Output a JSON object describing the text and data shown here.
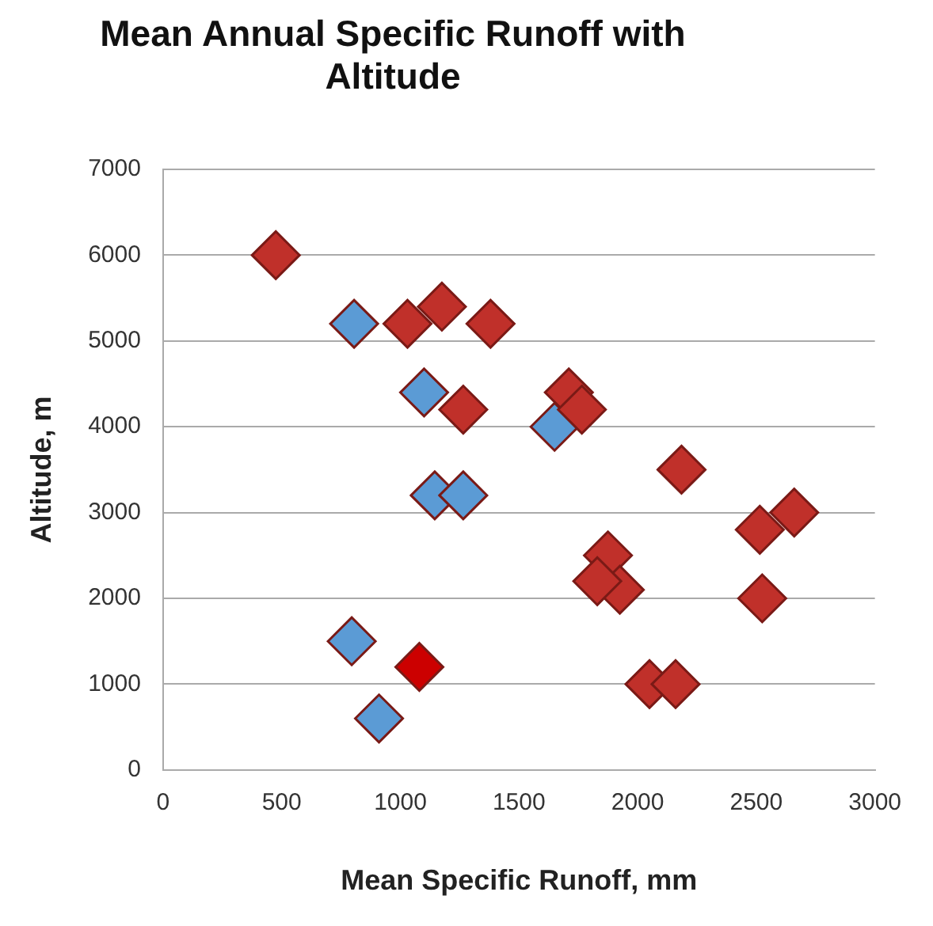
{
  "chart_data": {
    "type": "scatter",
    "title": "Mean Annual Specific Runoff with Altitude",
    "xlabel": "Mean Specific Runoff, mm",
    "ylabel": "Altitude, m",
    "xlim": [
      0,
      3000
    ],
    "xticks": [
      0,
      500,
      1000,
      1500,
      2000,
      2500,
      3000
    ],
    "ylim": [
      0,
      7000
    ],
    "yticks": [
      0,
      1000,
      2000,
      3000,
      4000,
      5000,
      6000,
      7000
    ],
    "grid": "y",
    "legend": false,
    "marker": "diamond",
    "series": [
      {
        "color": "#c0302a",
        "x": [
          475,
          1030,
          1175,
          1380,
          1710,
          1765,
          1265,
          2185,
          2515,
          2660,
          1875,
          1925,
          1830,
          2525,
          2050,
          2160
        ],
        "values": [
          6000,
          5200,
          5400,
          5200,
          4400,
          4200,
          4200,
          3500,
          2800,
          3000,
          2500,
          2100,
          2200,
          2000,
          1000,
          1000
        ]
      },
      {
        "color": "#5b9bd5",
        "x": [
          805,
          1100,
          1650,
          1145,
          1265,
          795,
          910
        ],
        "values": [
          5200,
          4400,
          4000,
          3200,
          3200,
          1500,
          600
        ]
      },
      {
        "color": "#cc0000",
        "x": [
          1080
        ],
        "values": [
          1200
        ]
      }
    ]
  }
}
